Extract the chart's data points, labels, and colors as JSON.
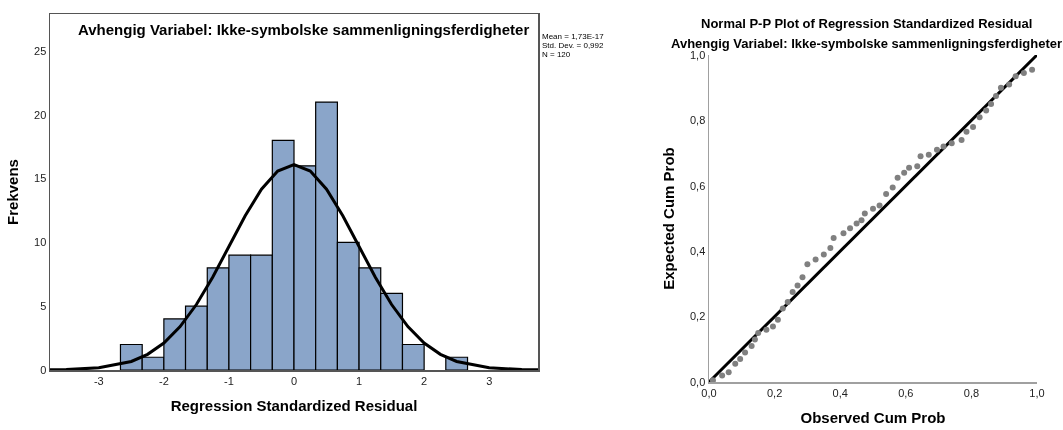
{
  "chart_data": [
    {
      "type": "histogram",
      "title": "Avhengig Variabel: Ikke-symbolske sammenligningsferdigheter",
      "xlabel": "Regression Standardized Residual",
      "ylabel": "Frekvens",
      "bins": [
        -2.667,
        -2.333,
        -2,
        -1.667,
        -1.333,
        -1,
        -0.667,
        -0.333,
        0,
        0.333,
        0.667,
        1,
        1.333,
        1.667,
        2,
        2.333,
        2.667
      ],
      "values": [
        2,
        1,
        4,
        5,
        8,
        9,
        9,
        18,
        16,
        21,
        10,
        8,
        6,
        2,
        0,
        1
      ],
      "color": "#8aa5c9",
      "series": [
        {
          "type": "line",
          "color": "#000000",
          "x": [
            -3.75,
            -3.5,
            -3,
            -2.5,
            -2.25,
            -2,
            -1.75,
            -1.5,
            -1.25,
            -1,
            -0.75,
            -0.5,
            -0.25,
            0,
            0.25,
            0.5,
            0.75,
            1,
            1.25,
            1.5,
            1.75,
            2,
            2.25,
            2.5,
            3,
            3.5,
            3.75
          ],
          "values": [
            0.01,
            0.03,
            0.17,
            0.67,
            1.23,
            2.11,
            3.4,
            5.13,
            7.27,
            9.68,
            12.09,
            14.17,
            15.59,
            16.09,
            15.59,
            14.17,
            12.09,
            9.68,
            7.27,
            5.13,
            3.4,
            2.11,
            1.23,
            0.67,
            0.17,
            0.03,
            0.01
          ]
        }
      ],
      "xlim": [
        -3.75,
        3.75
      ],
      "xticks": [
        -3,
        -2,
        -1,
        0,
        1,
        2,
        3
      ],
      "ylim": [
        0,
        27.9
      ],
      "yticks": [
        0,
        5,
        10,
        15,
        20,
        25
      ],
      "annotations": [
        "Mean = 1,73E-17",
        "Std. Dev. = 0,992",
        "N = 120"
      ]
    },
    {
      "type": "scatter",
      "title": "Normal P-P Plot of Regression Standardized Residual",
      "subtitle": "Avhengig Variabel: Ikke-symbolske sammenligningsferdigheter",
      "xlabel": "Observed Cum Prob",
      "ylabel": "Expected Cum Prob",
      "series": [
        {
          "type": "line",
          "marker": "none",
          "color": "#000000",
          "x": [
            0,
            1
          ],
          "values": [
            0,
            1
          ]
        },
        {
          "type": "scatter",
          "marker": "circle",
          "color": "#808080",
          "x": [
            0.012,
            0.04,
            0.06,
            0.08,
            0.095,
            0.11,
            0.13,
            0.14,
            0.15,
            0.175,
            0.195,
            0.21,
            0.225,
            0.24,
            0.255,
            0.27,
            0.285,
            0.3,
            0.325,
            0.35,
            0.37,
            0.38,
            0.41,
            0.43,
            0.45,
            0.465,
            0.475,
            0.5,
            0.52,
            0.54,
            0.56,
            0.575,
            0.595,
            0.61,
            0.635,
            0.645,
            0.67,
            0.695,
            0.715,
            0.74,
            0.77,
            0.785,
            0.805,
            0.825,
            0.845,
            0.86,
            0.875,
            0.89,
            0.915,
            0.935,
            0.96,
            0.985
          ],
          "values": [
            0.005,
            0.02,
            0.03,
            0.056,
            0.07,
            0.09,
            0.11,
            0.13,
            0.15,
            0.16,
            0.17,
            0.19,
            0.225,
            0.245,
            0.275,
            0.295,
            0.32,
            0.36,
            0.375,
            0.39,
            0.41,
            0.44,
            0.455,
            0.47,
            0.485,
            0.495,
            0.515,
            0.53,
            0.54,
            0.575,
            0.595,
            0.625,
            0.64,
            0.655,
            0.66,
            0.69,
            0.695,
            0.71,
            0.72,
            0.73,
            0.74,
            0.765,
            0.78,
            0.81,
            0.83,
            0.85,
            0.875,
            0.9,
            0.91,
            0.935,
            0.945,
            0.955
          ]
        }
      ],
      "xlim": [
        0,
        1
      ],
      "xticks": [
        {
          "value": 0,
          "label": "0,0"
        },
        {
          "value": 0.2,
          "label": "0,2"
        },
        {
          "value": 0.4,
          "label": "0,4"
        },
        {
          "value": 0.6,
          "label": "0,6"
        },
        {
          "value": 0.8,
          "label": "0,8"
        },
        {
          "value": 1,
          "label": "1,0"
        }
      ],
      "ylim": [
        0,
        1
      ],
      "yticks": [
        {
          "value": 0,
          "label": "0,0"
        },
        {
          "value": 0.2,
          "label": "0,2"
        },
        {
          "value": 0.4,
          "label": "0,4"
        },
        {
          "value": 0.6,
          "label": "0,6"
        },
        {
          "value": 0.8,
          "label": "0,8"
        },
        {
          "value": 1,
          "label": "1,0"
        }
      ]
    }
  ]
}
